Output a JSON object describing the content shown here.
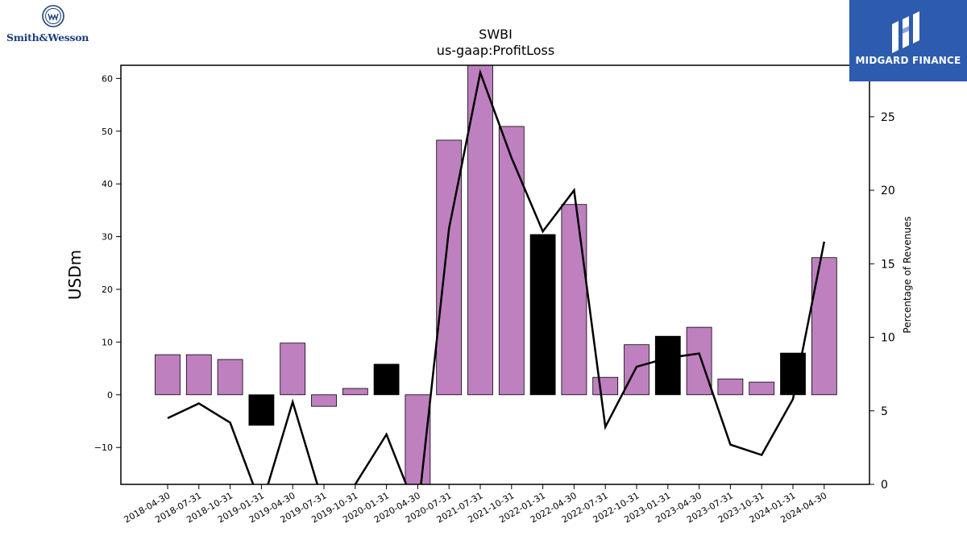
{
  "logos": {
    "left_brand": "Smith&Wesson",
    "left_icon": "smith-wesson-seal-icon",
    "right_brand": "MIDGARD FINANCE",
    "right_icon": "midgard-finance-logo-icon"
  },
  "chart_data": {
    "type": "bar",
    "title": "SWBI",
    "subtitle": "us-gaap:ProfitLoss",
    "ylabel": "USDm",
    "y2label": "Percentage of Revenues",
    "ylim": [
      -17,
      62.5
    ],
    "y2lim": [
      0,
      28.5
    ],
    "yticks": [
      -10,
      0,
      10,
      20,
      30,
      40,
      50,
      60
    ],
    "y2ticks": [
      0,
      5,
      10,
      15,
      20,
      25
    ],
    "categories": [
      "2018-04-30",
      "2018-07-31",
      "2018-10-31",
      "2019-01-31",
      "2019-04-30",
      "2019-07-31",
      "2019-10-31",
      "2020-01-31",
      "2020-04-30",
      "2020-07-31",
      "2021-07-31",
      "2021-10-31",
      "2022-01-31",
      "2022-04-30",
      "2022-07-31",
      "2022-10-31",
      "2023-01-31",
      "2023-04-30",
      "2023-07-31",
      "2023-10-31",
      "2024-01-31",
      "2024-04-30"
    ],
    "series": [
      {
        "type": "bar",
        "axis": "left",
        "values": [
          7.6,
          7.6,
          6.7,
          -5.8,
          9.8,
          -2.2,
          1.2,
          5.8,
          -17.5,
          48.3,
          63.0,
          50.9,
          30.4,
          36.1,
          3.3,
          9.5,
          11.1,
          12.8,
          3.0,
          2.4,
          7.9,
          26.0
        ],
        "colors": [
          "#bf80bf",
          "#bf80bf",
          "#bf80bf",
          "#000000",
          "#bf80bf",
          "#bf80bf",
          "#bf80bf",
          "#000000",
          "#bf80bf",
          "#bf80bf",
          "#bf80bf",
          "#bf80bf",
          "#000000",
          "#bf80bf",
          "#bf80bf",
          "#bf80bf",
          "#000000",
          "#bf80bf",
          "#bf80bf",
          "#bf80bf",
          "#000000",
          "#bf80bf"
        ]
      },
      {
        "type": "line",
        "axis": "right",
        "color": "#000000",
        "values": [
          4.5,
          5.5,
          4.2,
          -1.5,
          5.6,
          -1.5,
          0.0,
          3.4,
          -2.0,
          17.4,
          28.0,
          22.2,
          17.2,
          20.0,
          3.9,
          8.0,
          8.6,
          8.9,
          2.7,
          2.0,
          5.8,
          16.5
        ]
      }
    ],
    "colors": {
      "positive_bar": "#bf80bf",
      "quarter_highlight_bar": "#000000",
      "line": "#000000"
    },
    "grid": false,
    "legend": "none"
  }
}
